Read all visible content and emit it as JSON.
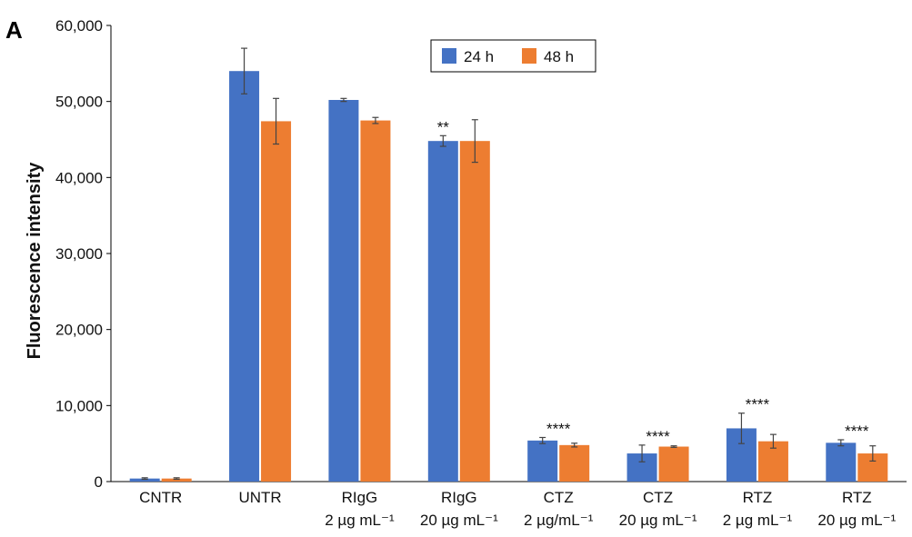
{
  "panel_label": "A",
  "chart_data": {
    "type": "bar",
    "title": "",
    "xlabel": "",
    "ylabel": "Fluorescence intensity",
    "ylim": [
      0,
      60000
    ],
    "yticks": [
      0,
      10000,
      20000,
      30000,
      40000,
      50000,
      60000
    ],
    "ytick_labels": [
      "0",
      "10,000",
      "20,000",
      "30,000",
      "40,000",
      "50,000",
      "60,000"
    ],
    "grid": false,
    "legend_position": "top-center",
    "categories": [
      {
        "line1": "CNTR",
        "line2": ""
      },
      {
        "line1": "UNTR",
        "line2": ""
      },
      {
        "line1": "RIgG",
        "line2": "2 µg mL⁻¹"
      },
      {
        "line1": "RIgG",
        "line2": "20 µg mL⁻¹"
      },
      {
        "line1": "CTZ",
        "line2": "2 µg/mL⁻¹"
      },
      {
        "line1": "CTZ",
        "line2": "20 µg mL⁻¹"
      },
      {
        "line1": "RTZ",
        "line2": "2 µg mL⁻¹"
      },
      {
        "line1": "RTZ",
        "line2": "20 µg mL⁻¹"
      }
    ],
    "series": [
      {
        "name": "24 h",
        "color": "#4472C4",
        "values": [
          400,
          54000,
          50200,
          44800,
          5400,
          3700,
          7000,
          5100
        ],
        "errors": [
          100,
          3000,
          200,
          700,
          400,
          1100,
          2000,
          400
        ]
      },
      {
        "name": "48 h",
        "color": "#ED7D31",
        "values": [
          400,
          47400,
          47500,
          44800,
          4800,
          4600,
          5300,
          3700
        ],
        "errors": [
          100,
          3000,
          400,
          2800,
          250,
          100,
          900,
          1000
        ]
      }
    ],
    "annotations": [
      {
        "category_index": 3,
        "series_index": 0,
        "text": "**"
      },
      {
        "category_index": 4,
        "series_index": 0,
        "text": "****"
      },
      {
        "category_index": 5,
        "series_index": 0,
        "text": "****"
      },
      {
        "category_index": 6,
        "series_index": 0,
        "text": "****"
      },
      {
        "category_index": 7,
        "series_index": 0,
        "text": "****"
      }
    ]
  }
}
